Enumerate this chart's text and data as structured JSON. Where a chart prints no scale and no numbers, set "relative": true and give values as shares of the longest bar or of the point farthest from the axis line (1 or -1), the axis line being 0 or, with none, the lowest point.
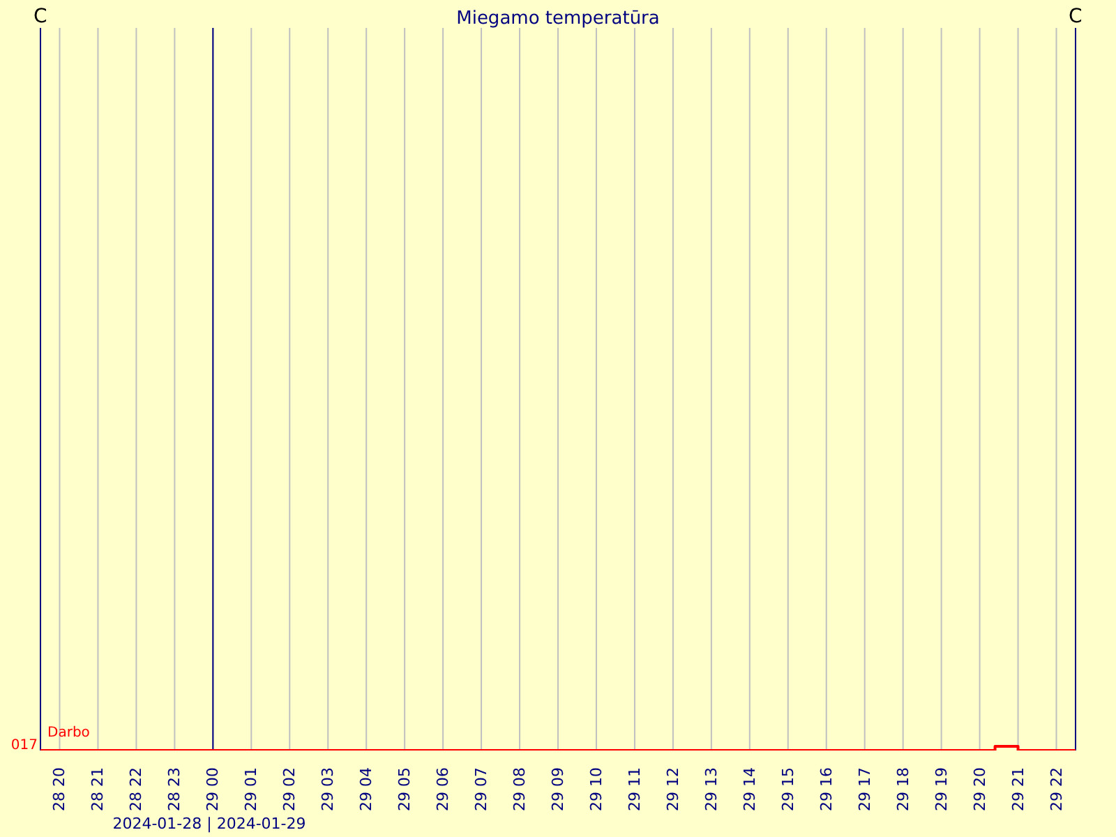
{
  "chart_data": {
    "type": "step",
    "title": "Miegamo temperatūra",
    "relative": true,
    "x": [
      "2024-01-28T19:30",
      "2024-01-29T20:24",
      "2024-01-29T21:00",
      "2024-01-29T22:30"
    ],
    "series": [
      {
        "name": "Darbo",
        "color": "#ff0000",
        "values": [
          0,
          1,
          0,
          0
        ]
      }
    ],
    "xlim": [
      "2024-01-28T19:30",
      "2024-01-29T22:30"
    ],
    "xticks": [
      {
        "value": "2024-01-28T20:00",
        "label": "28 20"
      },
      {
        "value": "2024-01-28T21:00",
        "label": "28 21"
      },
      {
        "value": "2024-01-28T22:00",
        "label": "28 22"
      },
      {
        "value": "2024-01-28T23:00",
        "label": "28 23"
      },
      {
        "value": "2024-01-29T00:00",
        "label": "29 00"
      },
      {
        "value": "2024-01-29T01:00",
        "label": "29 01"
      },
      {
        "value": "2024-01-29T02:00",
        "label": "29 02"
      },
      {
        "value": "2024-01-29T03:00",
        "label": "29 03"
      },
      {
        "value": "2024-01-29T04:00",
        "label": "29 04"
      },
      {
        "value": "2024-01-29T05:00",
        "label": "29 05"
      },
      {
        "value": "2024-01-29T06:00",
        "label": "29 06"
      },
      {
        "value": "2024-01-29T07:00",
        "label": "29 07"
      },
      {
        "value": "2024-01-29T08:00",
        "label": "29 08"
      },
      {
        "value": "2024-01-29T09:00",
        "label": "29 09"
      },
      {
        "value": "2024-01-29T10:00",
        "label": "29 10"
      },
      {
        "value": "2024-01-29T11:00",
        "label": "29 11"
      },
      {
        "value": "2024-01-29T12:00",
        "label": "29 12"
      },
      {
        "value": "2024-01-29T13:00",
        "label": "29 13"
      },
      {
        "value": "2024-01-29T14:00",
        "label": "29 14"
      },
      {
        "value": "2024-01-29T15:00",
        "label": "29 15"
      },
      {
        "value": "2024-01-29T16:00",
        "label": "29 16"
      },
      {
        "value": "2024-01-29T17:00",
        "label": "29 17"
      },
      {
        "value": "2024-01-29T18:00",
        "label": "29 18"
      },
      {
        "value": "2024-01-29T19:00",
        "label": "29 19"
      },
      {
        "value": "2024-01-29T20:00",
        "label": "29 20"
      },
      {
        "value": "2024-01-29T21:00",
        "label": "29 21"
      },
      {
        "value": "2024-01-29T22:00",
        "label": "29 22"
      }
    ],
    "ref_lines": [
      {
        "axis": "x",
        "value": "2024-01-29T00:00",
        "color": "#000080"
      }
    ],
    "grid": "x",
    "marker": "none",
    "line_style": "solid",
    "annotations": [
      "C",
      "C",
      "017",
      "2024-01-28 | 2024-01-29"
    ]
  }
}
